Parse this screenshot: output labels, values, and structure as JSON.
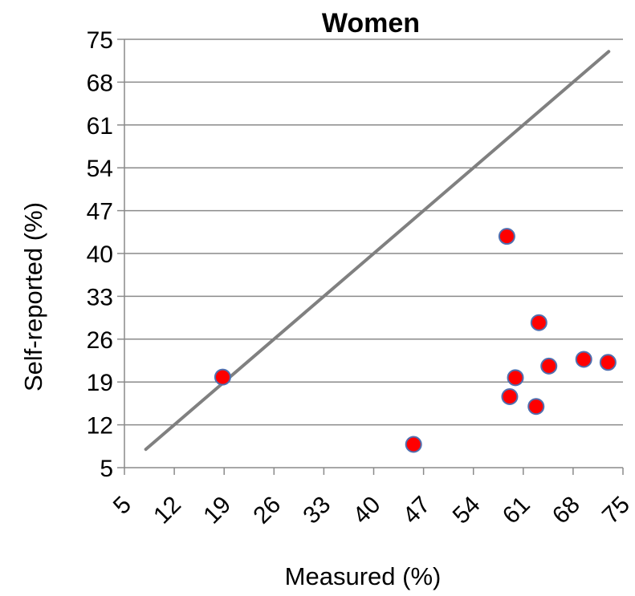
{
  "chart_data": {
    "type": "scatter",
    "title": "Women",
    "xlabel": "Measured (%)",
    "ylabel": "Self-reported (%)",
    "xlim": [
      5,
      75
    ],
    "ylim": [
      5,
      75
    ],
    "x_ticks": [
      "5",
      "12",
      "19",
      "26",
      "33",
      "40",
      "47",
      "54",
      "61",
      "68",
      "75"
    ],
    "y_ticks": [
      "5",
      "12",
      "19",
      "26",
      "33",
      "40",
      "47",
      "54",
      "61",
      "68",
      "75"
    ],
    "grid": "horizontal",
    "legend": "none",
    "reference_line": {
      "x": [
        8.0,
        73.0
      ],
      "y": [
        8.0,
        73.0
      ],
      "color": "#808080"
    },
    "series": [
      {
        "marker_color": "#ff0000",
        "marker_edge_color": "#4f6fb0",
        "points": [
          {
            "x": 18.8,
            "y": 19.8
          },
          {
            "x": 45.6,
            "y": 8.8
          },
          {
            "x": 58.7,
            "y": 42.8
          },
          {
            "x": 59.1,
            "y": 16.6
          },
          {
            "x": 59.9,
            "y": 19.7
          },
          {
            "x": 62.8,
            "y": 15.0
          },
          {
            "x": 63.2,
            "y": 28.7
          },
          {
            "x": 64.6,
            "y": 21.6
          },
          {
            "x": 69.5,
            "y": 22.7
          },
          {
            "x": 72.9,
            "y": 22.2
          }
        ]
      }
    ]
  }
}
